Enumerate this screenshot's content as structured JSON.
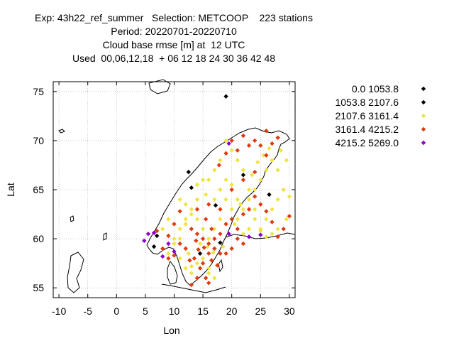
{
  "chart_data": {
    "type": "scatter",
    "title_lines": [
      "Exp: 43h22_ref_summer   Selection: METCOOP    223 stations",
      "Period: 20220701-20220710",
      "Cloud base rmse [m] at  12 UTC",
      "Used  00,06,12,18  + 06 12 18 24 30 36 42 48"
    ],
    "xlabel": "Lon",
    "ylabel": "Lat",
    "xlim": [
      -11,
      31
    ],
    "ylim": [
      54,
      76
    ],
    "xticks": [
      -10,
      -5,
      0,
      5,
      10,
      15,
      20,
      25,
      30
    ],
    "yticks": [
      55,
      60,
      65,
      70,
      75
    ],
    "grid": true,
    "legend_position": "right",
    "legend": [
      {
        "label": "0.0 1053.8",
        "color": "#000000"
      },
      {
        "label": "1053.8 2107.6",
        "color": "#000000"
      },
      {
        "label": "2107.6 3161.4",
        "color": "#f0e442"
      },
      {
        "label": "3161.4 4215.2",
        "color": "#e03a10"
      },
      {
        "label": "4215.2 5269.0",
        "color": "#8b00cc"
      }
    ],
    "series": [
      {
        "class": 0,
        "points": [
          [
            19,
            74.5
          ],
          [
            12.5,
            66.8
          ],
          [
            26.5,
            64.5
          ],
          [
            22,
            66.5
          ],
          [
            7,
            60.3
          ],
          [
            18,
            59.6
          ],
          [
            14.5,
            58.5
          ],
          [
            17.2,
            63.4
          ],
          [
            6.5,
            59.2
          ],
          [
            13,
            65.2
          ]
        ]
      },
      {
        "class": 2,
        "points": [
          [
            14,
            65.5
          ],
          [
            15.5,
            64.5
          ],
          [
            17,
            64
          ],
          [
            18,
            65
          ],
          [
            19,
            66
          ],
          [
            20,
            65.5
          ],
          [
            21,
            64
          ],
          [
            22,
            63
          ],
          [
            23,
            64
          ],
          [
            24,
            65
          ],
          [
            25,
            66
          ],
          [
            26,
            67
          ],
          [
            27,
            68
          ],
          [
            28,
            67
          ],
          [
            29,
            65
          ],
          [
            28,
            64
          ],
          [
            27,
            63
          ],
          [
            26,
            62
          ],
          [
            25,
            61
          ],
          [
            24,
            62
          ],
          [
            23,
            61
          ],
          [
            22,
            60.5
          ],
          [
            21,
            62
          ],
          [
            20,
            63
          ],
          [
            19,
            64
          ],
          [
            18,
            62
          ],
          [
            17,
            61
          ],
          [
            16,
            60
          ],
          [
            15,
            61
          ],
          [
            14,
            62
          ],
          [
            13,
            63
          ],
          [
            12,
            61.5
          ],
          [
            11,
            60
          ],
          [
            10,
            59.5
          ],
          [
            9,
            58.5
          ],
          [
            11,
            58
          ],
          [
            12,
            57
          ],
          [
            13,
            56.5
          ],
          [
            14,
            57.5
          ],
          [
            15,
            58
          ],
          [
            16,
            57
          ],
          [
            17,
            56
          ],
          [
            16,
            56.5
          ],
          [
            13,
            57.2
          ],
          [
            12.5,
            58.5
          ],
          [
            14.5,
            59.5
          ],
          [
            15.8,
            59.2
          ],
          [
            16.8,
            58.6
          ],
          [
            18.5,
            59.2
          ],
          [
            19.5,
            60.5
          ],
          [
            20.5,
            61.5
          ],
          [
            21.5,
            63.5
          ],
          [
            23.5,
            66.5
          ],
          [
            24.5,
            67.8
          ],
          [
            25.5,
            68.5
          ],
          [
            26.5,
            69.2
          ],
          [
            28.5,
            69
          ],
          [
            29.5,
            68
          ],
          [
            30,
            64.3
          ],
          [
            29.5,
            62
          ],
          [
            28,
            61
          ],
          [
            27,
            60.5
          ],
          [
            26,
            60.2
          ],
          [
            25,
            60.8
          ],
          [
            24,
            63
          ],
          [
            23,
            65
          ],
          [
            22,
            67
          ],
          [
            21,
            68
          ],
          [
            20,
            69
          ],
          [
            19,
            70
          ],
          [
            18,
            68
          ],
          [
            17,
            67
          ],
          [
            16,
            66
          ],
          [
            15,
            66
          ],
          [
            14,
            64
          ],
          [
            13,
            62.5
          ],
          [
            12,
            62
          ],
          [
            11,
            61
          ],
          [
            10,
            60
          ],
          [
            8,
            61
          ],
          [
            9,
            62
          ],
          [
            11,
            64
          ],
          [
            12,
            63.5
          ]
        ]
      },
      {
        "class": 3,
        "points": [
          [
            13,
            61
          ],
          [
            14,
            60.5
          ],
          [
            15,
            60
          ],
          [
            16,
            59.5
          ],
          [
            17,
            59
          ],
          [
            18,
            58.5
          ],
          [
            13.5,
            58
          ],
          [
            14.5,
            57
          ],
          [
            15.5,
            56
          ],
          [
            16,
            55.5
          ],
          [
            13,
            55.3
          ],
          [
            14,
            56
          ],
          [
            15,
            57.5
          ],
          [
            16,
            58.5
          ],
          [
            17,
            60
          ],
          [
            18,
            60.5
          ],
          [
            19,
            61.5
          ],
          [
            20,
            62
          ],
          [
            21,
            61
          ],
          [
            22,
            62.5
          ],
          [
            23,
            63
          ],
          [
            24,
            64.3
          ],
          [
            25,
            63.5
          ],
          [
            26,
            62.8
          ],
          [
            27,
            61.7
          ],
          [
            28,
            60.2
          ],
          [
            29,
            61
          ],
          [
            30,
            62.3
          ],
          [
            21,
            60
          ],
          [
            22,
            59.5
          ],
          [
            20,
            59
          ],
          [
            19,
            58.5
          ],
          [
            12,
            59
          ],
          [
            11,
            59.5
          ],
          [
            10,
            58.3
          ],
          [
            9,
            58
          ],
          [
            8,
            59
          ],
          [
            7,
            60.8
          ],
          [
            9,
            60.3
          ],
          [
            10,
            61.5
          ],
          [
            11,
            62.8
          ],
          [
            14,
            63
          ],
          [
            16,
            63.5
          ],
          [
            18,
            63
          ],
          [
            20,
            65
          ],
          [
            22,
            66
          ],
          [
            24,
            66.8
          ],
          [
            26,
            68.5
          ],
          [
            25,
            69.5
          ],
          [
            23,
            69.5
          ],
          [
            21,
            69
          ],
          [
            20,
            70
          ],
          [
            22,
            70.5
          ],
          [
            24,
            70
          ],
          [
            26,
            71
          ],
          [
            28,
            70.3
          ],
          [
            27,
            69.7
          ],
          [
            19,
            68.7
          ],
          [
            17.8,
            67.5
          ],
          [
            15.5,
            62
          ],
          [
            16.5,
            61
          ],
          [
            14.2,
            58.9
          ],
          [
            15.2,
            59.1
          ],
          [
            12.7,
            57.8
          ],
          [
            13.8,
            59.8
          ],
          [
            16.5,
            57.8
          ],
          [
            17.5,
            57.3
          ]
        ]
      },
      {
        "class": 4,
        "points": [
          [
            19.5,
            69.7
          ],
          [
            8,
            58.2
          ],
          [
            5.5,
            60.5
          ],
          [
            6.5,
            60.6
          ],
          [
            9,
            59.5
          ],
          [
            10,
            58.7
          ],
          [
            4.8,
            59.8
          ],
          [
            19.5,
            60.5
          ],
          [
            23,
            60.2
          ],
          [
            25,
            60.4
          ]
        ]
      }
    ]
  }
}
